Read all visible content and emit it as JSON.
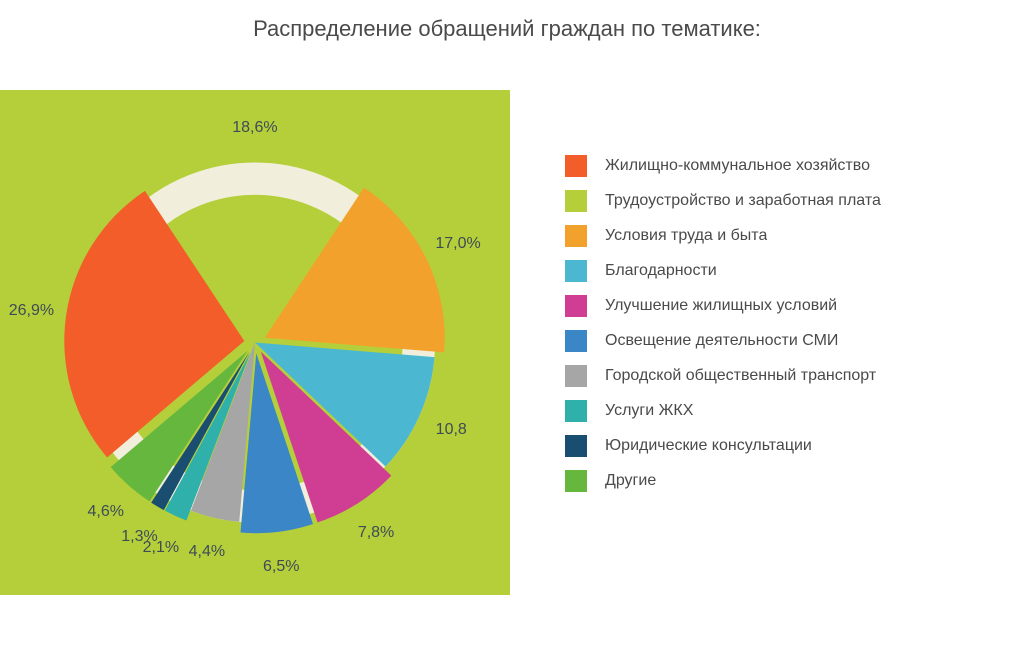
{
  "title": "Распределение обращений граждан по тематике:",
  "chart": {
    "type": "pie",
    "background_color": "#b5cf3b",
    "ring_bg_color": "#f1eedb",
    "label_color": "#3f4b56",
    "label_fontsize": 16,
    "inner_radius_ratio": 0.82,
    "rotation_start_deg": -33.5,
    "slices": [
      {
        "value": 18.6,
        "label": "18,6%",
        "color": "#b5cf3b",
        "explode": 0
      },
      {
        "value": 17.0,
        "label": "17,0%",
        "color": "#f2a22c",
        "explode": 0.06
      },
      {
        "value": 10.8,
        "label": "10,8",
        "color": "#4cb7d0",
        "explode": 0
      },
      {
        "value": 7.8,
        "label": "7,8%",
        "color": "#cf3e93",
        "explode": 0.06
      },
      {
        "value": 6.5,
        "label": "6,5%",
        "color": "#3b86c7",
        "explode": 0.06
      },
      {
        "value": 4.4,
        "label": "4,4%",
        "color": "#a6a6a6",
        "explode": 0
      },
      {
        "value": 2.1,
        "label": "2,1%",
        "color": "#2fb0aa",
        "explode": 0.06
      },
      {
        "value": 1.3,
        "label": "1,3%",
        "color": "#1a4e70",
        "explode": 0.06
      },
      {
        "value": 4.6,
        "label": "4,6%",
        "color": "#66b73e",
        "explode": 0.06
      },
      {
        "value": 26.9,
        "label": "26,9%",
        "color": "#f25d2a",
        "explode": 0.06
      }
    ]
  },
  "legend": {
    "text_color": "#4a4a4a",
    "fontsize": 16,
    "items": [
      {
        "color": "#f25d2a",
        "label": "Жилищно-коммунальное хозяйство"
      },
      {
        "color": "#b5cf3b",
        "label": "Трудоустройство и заработная плата"
      },
      {
        "color": "#f2a22c",
        "label": "Условия труда и быта"
      },
      {
        "color": "#4cb7d0",
        "label": "Благодарности"
      },
      {
        "color": "#cf3e93",
        "label": "Улучшение жилищных условий"
      },
      {
        "color": "#3b86c7",
        "label": "Освещение деятельности СМИ"
      },
      {
        "color": "#a6a6a6",
        "label": "Городской общественный транспорт"
      },
      {
        "color": "#2fb0aa",
        "label": "Услуги ЖКХ"
      },
      {
        "color": "#1a4e70",
        "label": "Юридические консультации"
      },
      {
        "color": "#66b73e",
        "label": "Другие"
      }
    ]
  }
}
